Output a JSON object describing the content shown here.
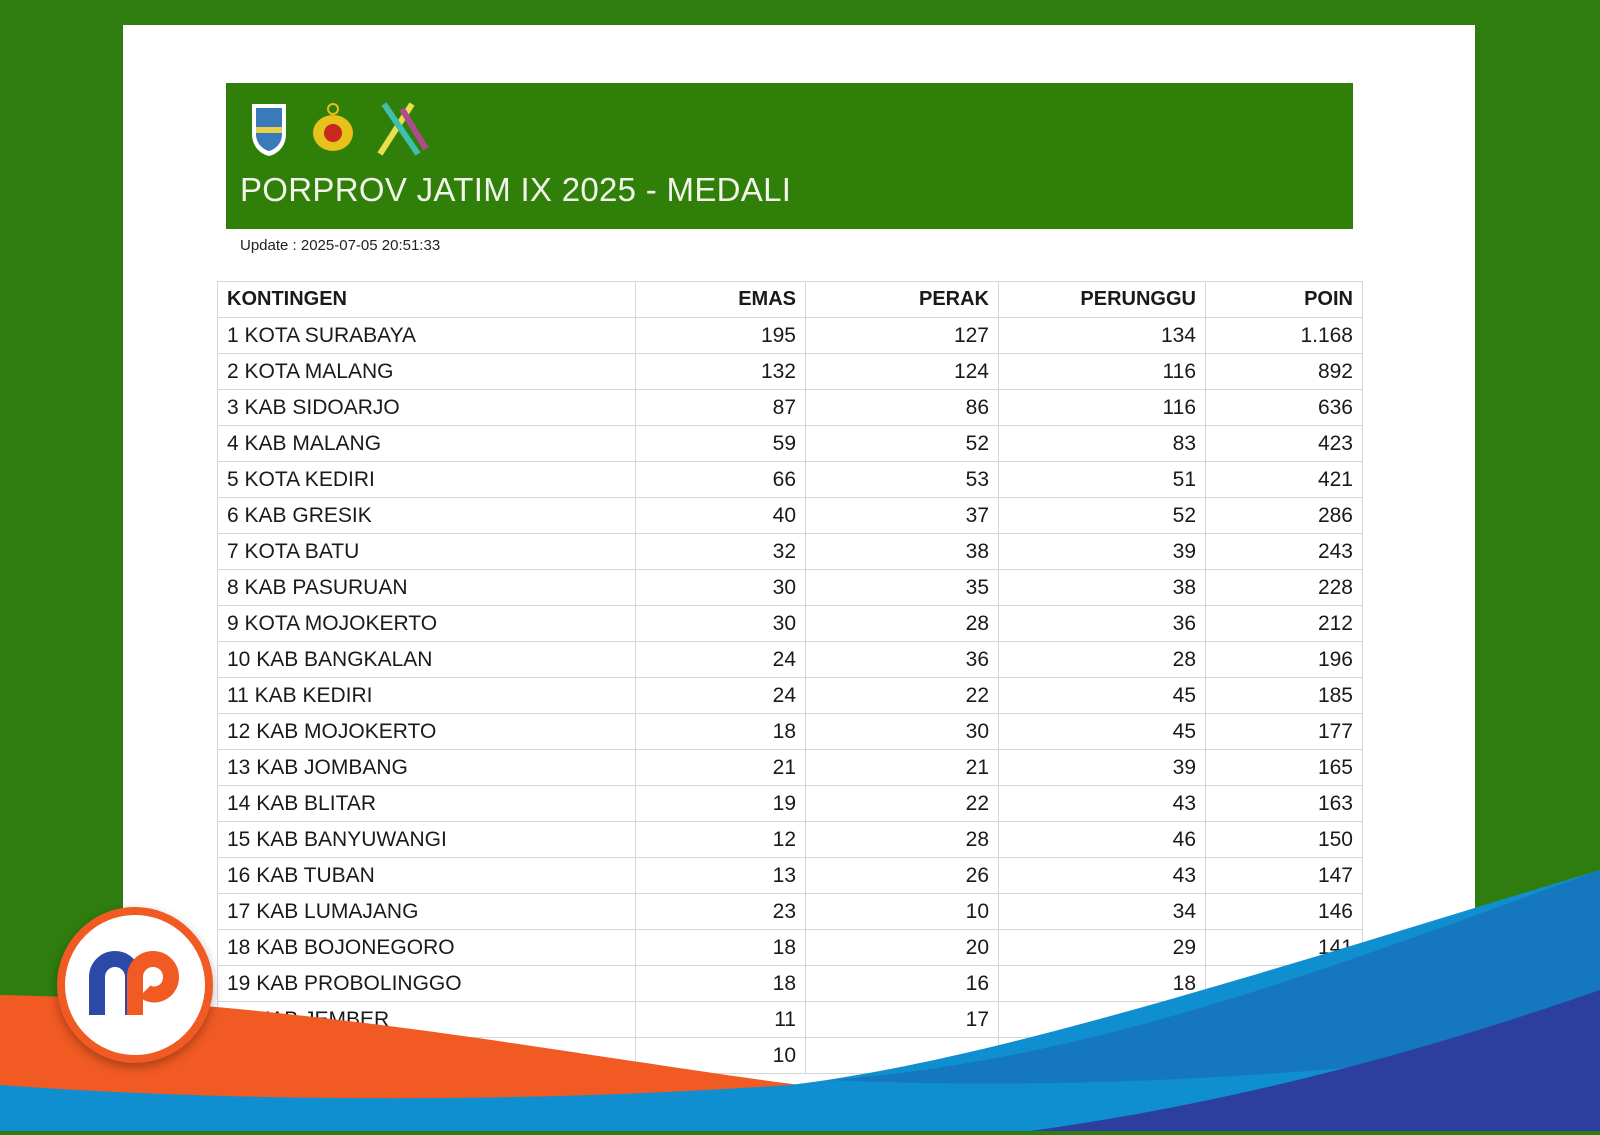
{
  "header": {
    "title": "PORPROV JATIM IX 2025 - MEDALI",
    "update": "Update : 2025-07-05 20:51:33"
  },
  "table": {
    "columns": [
      "KONTINGEN",
      "EMAS",
      "PERAK",
      "PERUNGGU",
      "POIN"
    ],
    "rows": [
      [
        "1 KOTA SURABAYA",
        "195",
        "127",
        "134",
        "1.168"
      ],
      [
        "2 KOTA MALANG",
        "132",
        "124",
        "116",
        "892"
      ],
      [
        "3 KAB SIDOARJO",
        "87",
        "86",
        "116",
        "636"
      ],
      [
        "4 KAB MALANG",
        "59",
        "52",
        "83",
        "423"
      ],
      [
        "5 KOTA KEDIRI",
        "66",
        "53",
        "51",
        "421"
      ],
      [
        "6 KAB GRESIK",
        "40",
        "37",
        "52",
        "286"
      ],
      [
        "7 KOTA BATU",
        "32",
        "38",
        "39",
        "243"
      ],
      [
        "8 KAB PASURUAN",
        "30",
        "35",
        "38",
        "228"
      ],
      [
        "9 KOTA MOJOKERTO",
        "30",
        "28",
        "36",
        "212"
      ],
      [
        "10 KAB BANGKALAN",
        "24",
        "36",
        "28",
        "196"
      ],
      [
        "11 KAB KEDIRI",
        "24",
        "22",
        "45",
        "185"
      ],
      [
        "12 KAB MOJOKERTO",
        "18",
        "30",
        "45",
        "177"
      ],
      [
        "13 KAB JOMBANG",
        "21",
        "21",
        "39",
        "165"
      ],
      [
        "14 KAB BLITAR",
        "19",
        "22",
        "43",
        "163"
      ],
      [
        "15 KAB BANYUWANGI",
        "12",
        "28",
        "46",
        "150"
      ],
      [
        "16 KAB TUBAN",
        "13",
        "26",
        "43",
        "147"
      ],
      [
        "17 KAB LUMAJANG",
        "23",
        "10",
        "34",
        "146"
      ],
      [
        "18 KAB BOJONEGORO",
        "18",
        "20",
        "29",
        "141"
      ],
      [
        "19 KAB PROBOLINGGO",
        "18",
        "16",
        "18",
        ""
      ],
      [
        "20 KAB JEMBER",
        "11",
        "17",
        "",
        ""
      ],
      [
        "",
        "10",
        "",
        "",
        ""
      ]
    ]
  },
  "colors": {
    "green": "#2f7f08",
    "orange": "#f15a22",
    "blue": "#1577bd",
    "navy": "#2c3e9e"
  }
}
